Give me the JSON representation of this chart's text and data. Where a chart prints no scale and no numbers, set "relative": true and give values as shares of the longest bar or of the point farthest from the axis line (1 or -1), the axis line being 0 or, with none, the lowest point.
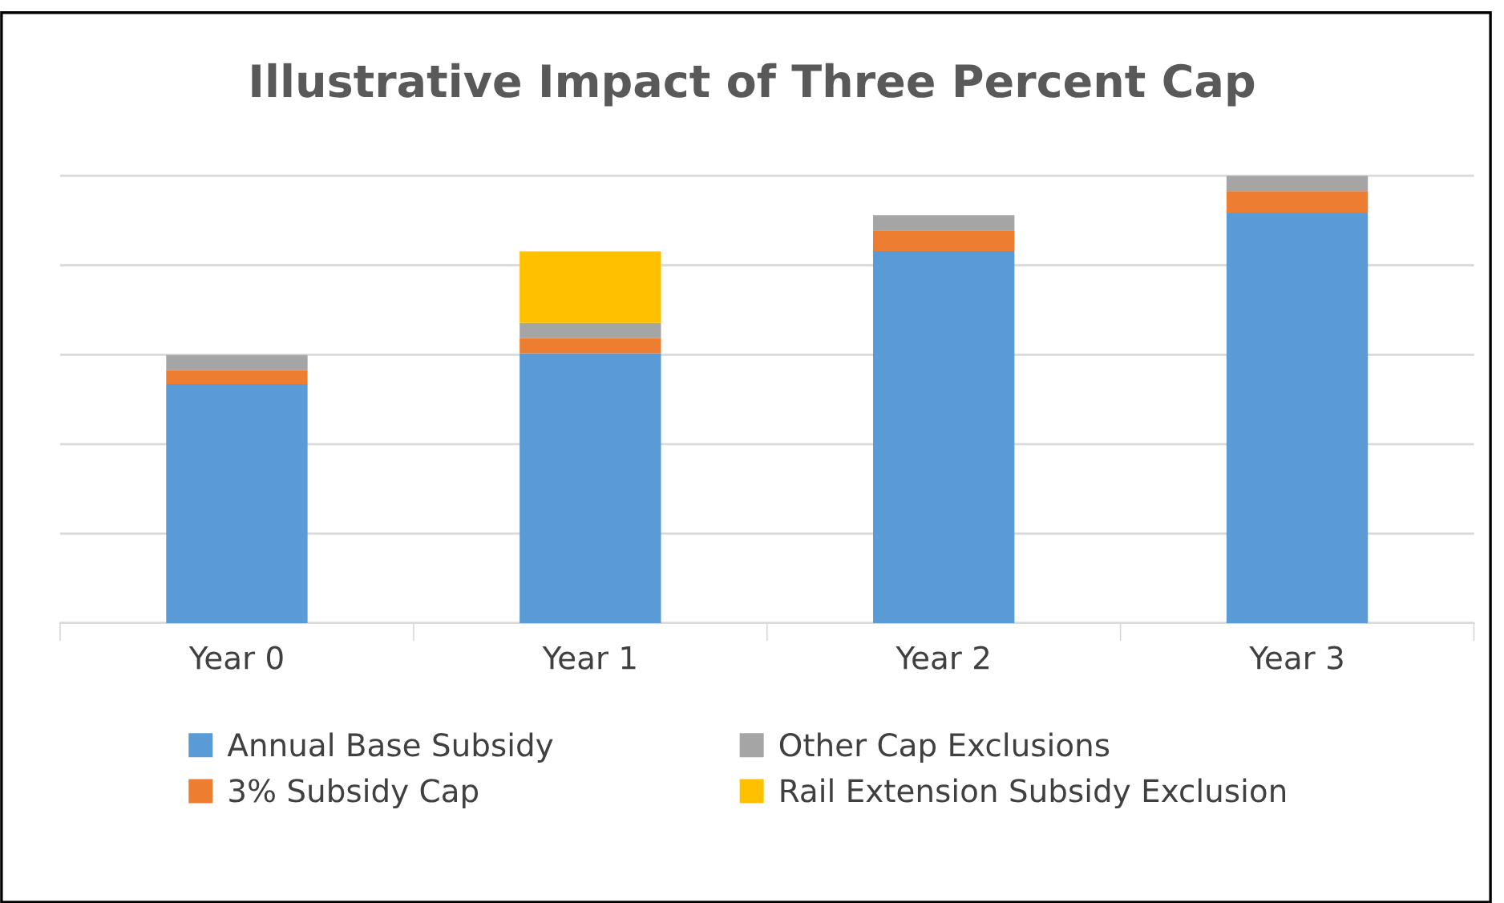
{
  "chart_data": {
    "type": "bar",
    "title": "Illustrative Impact of Three Percent Cap",
    "categories": [
      "Year 0",
      "Year 1",
      "Year 2",
      "Year 3"
    ],
    "stacked": true,
    "relative": true,
    "grid": "y",
    "legend": "bottom",
    "series": [
      {
        "name": "Annual Base Subsidy",
        "color": "#5b9bd5",
        "values": [
          0.534,
          0.603,
          0.832,
          0.916
        ]
      },
      {
        "name": "3% Subsidy Cap",
        "color": "#ed7d31",
        "values": [
          0.031,
          0.034,
          0.046,
          0.05
        ]
      },
      {
        "name": "Other Cap Exclusions",
        "color": "#a5a5a5",
        "values": [
          0.034,
          0.034,
          0.034,
          0.034
        ]
      },
      {
        "name": "Rail Extension Subsidy Exclusion",
        "color": "#ffc000",
        "values": [
          0,
          0.16,
          0,
          0
        ]
      }
    ]
  }
}
